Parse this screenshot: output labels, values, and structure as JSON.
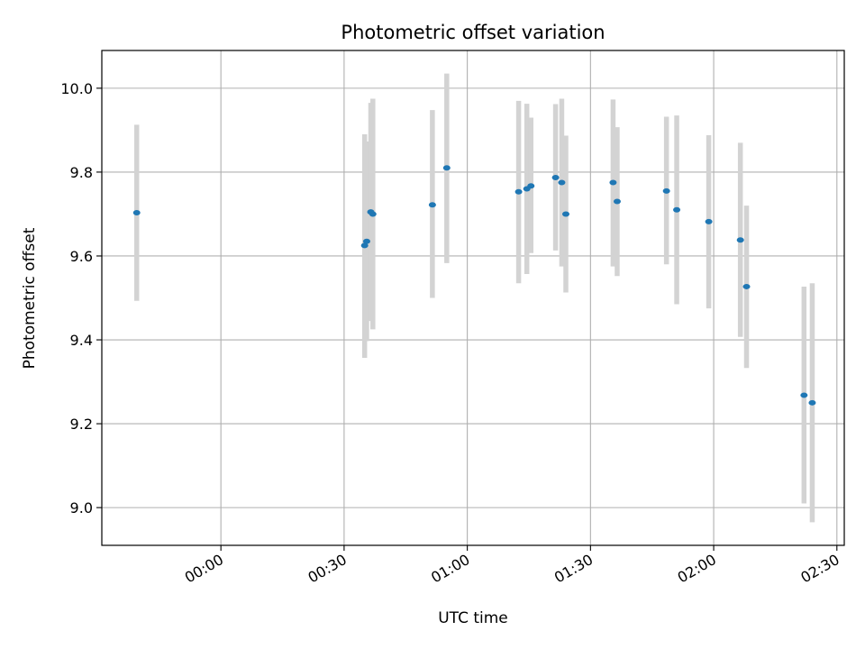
{
  "chart_data": {
    "type": "scatter",
    "title": "Photometric offset variation",
    "xlabel": "UTC time",
    "ylabel": "Photometric offset",
    "xlim": [
      -29.0,
      151.8
    ],
    "ylim": [
      8.91,
      10.09
    ],
    "grid": true,
    "x_ticks": [
      {
        "value": 0,
        "label": "00:00"
      },
      {
        "value": 30,
        "label": "00:30"
      },
      {
        "value": 60,
        "label": "01:00"
      },
      {
        "value": 90,
        "label": "01:30"
      },
      {
        "value": 120,
        "label": "02:00"
      },
      {
        "value": 150,
        "label": "02:30"
      }
    ],
    "y_ticks": [
      {
        "value": 9.0,
        "label": "9.0"
      },
      {
        "value": 9.2,
        "label": "9.2"
      },
      {
        "value": 9.4,
        "label": "9.4"
      },
      {
        "value": 9.6,
        "label": "9.6"
      },
      {
        "value": 9.8,
        "label": "9.8"
      },
      {
        "value": 10.0,
        "label": "10.0"
      }
    ],
    "marker_color": "#1f77b4",
    "errorbar_color": "#d3d3d3",
    "points": [
      {
        "x": -20.5,
        "y": 9.703,
        "ylow": 9.493,
        "yhigh": 9.913
      },
      {
        "x": 35.0,
        "y": 9.625,
        "ylow": 9.357,
        "yhigh": 9.89
      },
      {
        "x": 35.5,
        "y": 9.635,
        "ylow": 9.397,
        "yhigh": 9.873
      },
      {
        "x": 36.5,
        "y": 9.705,
        "ylow": 9.445,
        "yhigh": 9.965
      },
      {
        "x": 37.0,
        "y": 9.7,
        "ylow": 9.425,
        "yhigh": 9.975
      },
      {
        "x": 51.5,
        "y": 9.722,
        "ylow": 9.5,
        "yhigh": 9.948
      },
      {
        "x": 55.0,
        "y": 9.81,
        "ylow": 9.583,
        "yhigh": 10.035
      },
      {
        "x": 72.5,
        "y": 9.753,
        "ylow": 9.535,
        "yhigh": 9.97
      },
      {
        "x": 74.5,
        "y": 9.76,
        "ylow": 9.557,
        "yhigh": 9.963
      },
      {
        "x": 75.5,
        "y": 9.767,
        "ylow": 9.607,
        "yhigh": 9.93
      },
      {
        "x": 81.5,
        "y": 9.787,
        "ylow": 9.613,
        "yhigh": 9.962
      },
      {
        "x": 83.0,
        "y": 9.775,
        "ylow": 9.575,
        "yhigh": 9.975
      },
      {
        "x": 84.0,
        "y": 9.7,
        "ylow": 9.513,
        "yhigh": 9.887
      },
      {
        "x": 95.5,
        "y": 9.775,
        "ylow": 9.575,
        "yhigh": 9.973
      },
      {
        "x": 96.5,
        "y": 9.73,
        "ylow": 9.552,
        "yhigh": 9.907
      },
      {
        "x": 108.5,
        "y": 9.755,
        "ylow": 9.58,
        "yhigh": 9.932
      },
      {
        "x": 111.0,
        "y": 9.71,
        "ylow": 9.485,
        "yhigh": 9.935
      },
      {
        "x": 118.8,
        "y": 9.682,
        "ylow": 9.475,
        "yhigh": 9.888
      },
      {
        "x": 126.5,
        "y": 9.638,
        "ylow": 9.407,
        "yhigh": 9.87
      },
      {
        "x": 128.0,
        "y": 9.527,
        "ylow": 9.333,
        "yhigh": 9.72
      },
      {
        "x": 142.0,
        "y": 9.268,
        "ylow": 9.01,
        "yhigh": 9.527
      },
      {
        "x": 144.0,
        "y": 9.25,
        "ylow": 8.965,
        "yhigh": 9.535
      }
    ]
  }
}
